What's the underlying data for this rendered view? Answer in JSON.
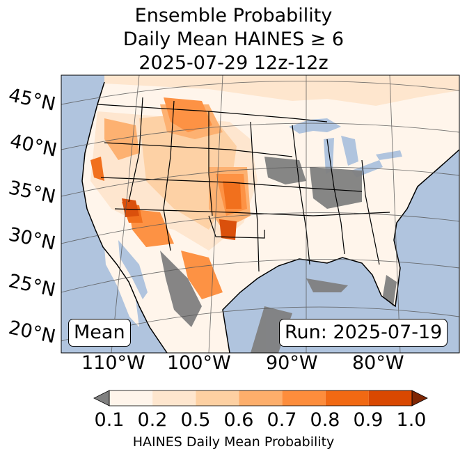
{
  "title": {
    "line1": "Ensemble Probability",
    "line2": "Daily Mean HAINES ≥ 6",
    "line3": "2025-07-29 12z-12z"
  },
  "chart_data": {
    "type": "heatmap",
    "projection": "lambert-conformal (CONUS)",
    "latitude_labels": [
      "45°N",
      "40°N",
      "35°N",
      "30°N",
      "25°N",
      "20°N"
    ],
    "longitude_labels": [
      "110°W",
      "100°W",
      "90°W",
      "80°W"
    ],
    "colorbar": {
      "label": "HAINES Daily Mean Probability",
      "ticks": [
        "0.1",
        "0.2",
        "0.5",
        "0.6",
        "0.7",
        "0.8",
        "0.9",
        "1.0"
      ],
      "bins": [
        {
          "range": [
            0.1,
            0.2
          ],
          "color": "#fff5eb"
        },
        {
          "range": [
            0.2,
            0.5
          ],
          "color": "#fee6ce"
        },
        {
          "range": [
            0.5,
            0.6
          ],
          "color": "#fdd0a2"
        },
        {
          "range": [
            0.6,
            0.7
          ],
          "color": "#fdae6b"
        },
        {
          "range": [
            0.7,
            0.8
          ],
          "color": "#fd8d3c"
        },
        {
          "range": [
            0.8,
            0.9
          ],
          "color": "#f16913"
        },
        {
          "range": [
            0.9,
            1.0
          ],
          "color": "#d94801"
        }
      ],
      "under_color": "#808080",
      "over_color": "#7f2704"
    },
    "annotations": {
      "statistic": "Mean",
      "run": "Run: 2025-07-19"
    }
  },
  "colors": {
    "ocean": "#b0c4de",
    "land_lowest": "#fff5eb",
    "below_threshold": "#808080"
  }
}
